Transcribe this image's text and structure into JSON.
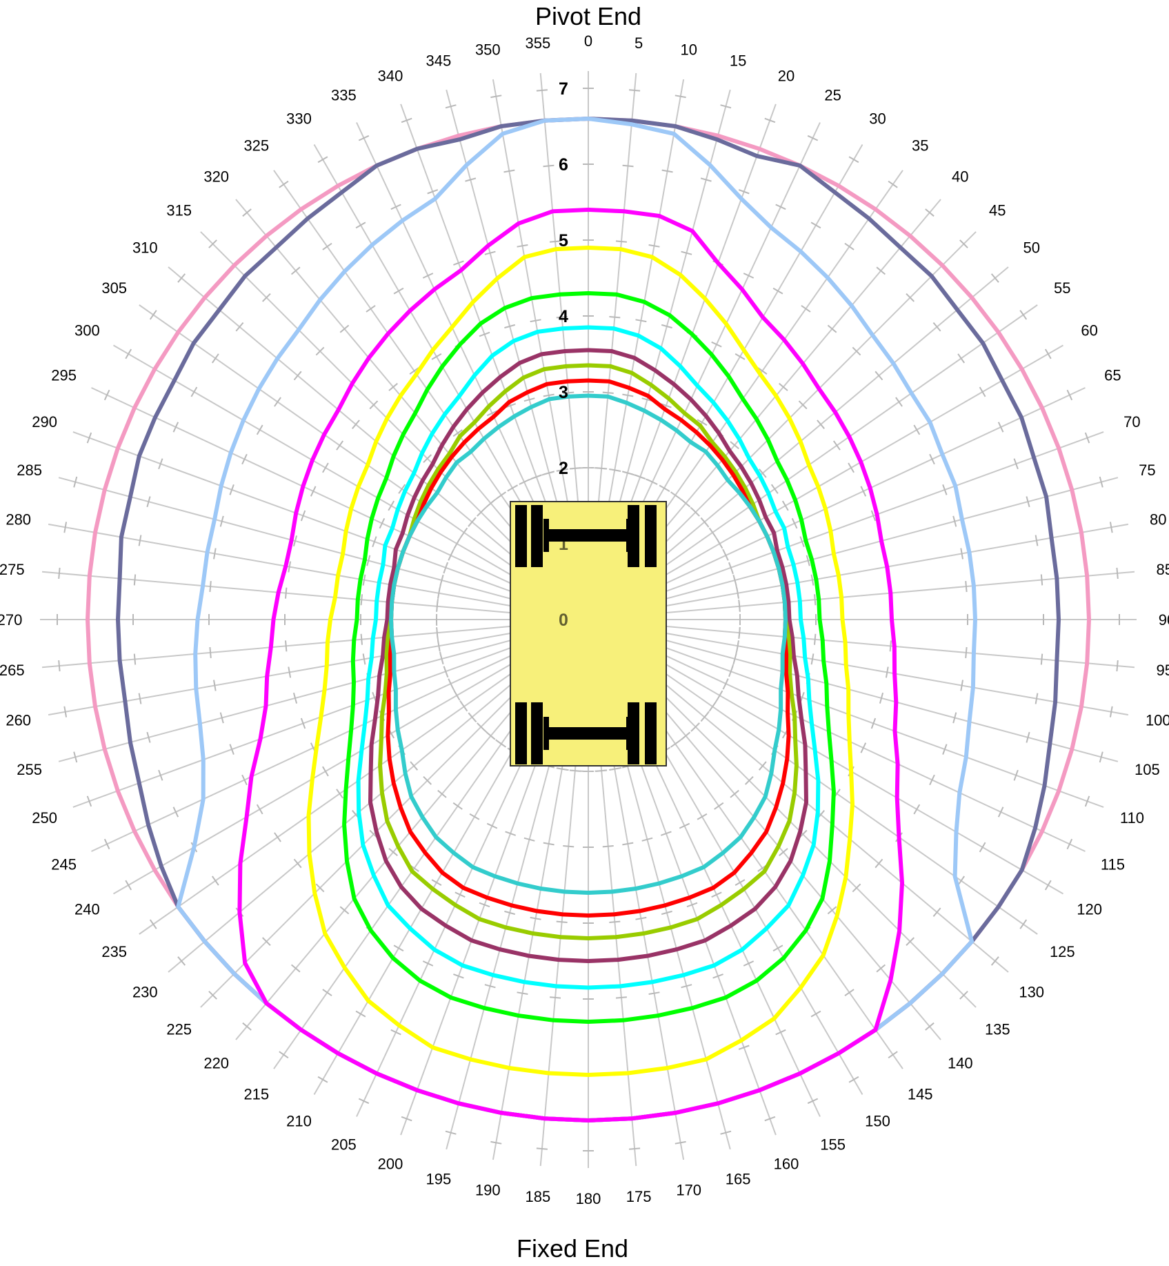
{
  "chart_data": {
    "type": "polar-line",
    "title": "Pivot End",
    "bottom_label": "Fixed End",
    "angle_ticks": [
      "0",
      "5",
      "10",
      "15",
      "20",
      "25",
      "30",
      "35",
      "40",
      "45",
      "50",
      "55",
      "60",
      "65",
      "70",
      "75",
      "80",
      "85",
      "90",
      "95",
      "100",
      "105",
      "110",
      "115",
      "120",
      "125",
      "130",
      "135",
      "140",
      "145",
      "150",
      "155",
      "160",
      "165",
      "170",
      "175",
      "180",
      "185",
      "190",
      "195",
      "200",
      "205",
      "210",
      "215",
      "220",
      "225",
      "230",
      "235",
      "240",
      "245",
      "250",
      "255",
      "260",
      "265",
      "270",
      "275",
      "280",
      "285",
      "290",
      "295",
      "300",
      "305",
      "310",
      "315",
      "320",
      "325",
      "330",
      "335",
      "340",
      "345",
      "350",
      "355"
    ],
    "radial_ticks": [
      "0",
      "1",
      "2",
      "3",
      "4",
      "5",
      "6",
      "7"
    ],
    "radial_range": [
      0,
      7.5
    ],
    "angle_step_deg": 5,
    "grid": true,
    "legend": "none",
    "series": [
      {
        "color": "#f49ac2",
        "values": [
          6.6,
          6.6,
          6.6,
          6.6,
          6.6,
          6.6,
          6.6,
          6.6,
          6.6,
          6.6,
          6.6,
          6.6,
          6.6,
          6.6,
          6.6,
          6.6,
          6.6,
          6.6,
          6.6,
          6.6,
          6.6,
          6.6,
          6.6,
          6.6,
          6.6,
          6.6,
          6.6,
          6.6,
          6.6,
          6.6,
          6.6,
          6.6,
          6.6,
          6.6,
          6.6,
          6.6,
          6.6,
          6.6,
          6.6,
          6.6,
          6.6,
          6.6,
          6.6,
          6.6,
          6.6,
          6.6,
          6.6,
          6.6,
          6.6,
          6.6,
          6.6,
          6.6,
          6.6,
          6.6,
          6.6,
          6.6,
          6.6,
          6.6,
          6.6,
          6.6,
          6.6,
          6.6,
          6.6,
          6.6,
          6.6,
          6.6,
          6.6,
          6.6,
          6.6,
          6.6,
          6.6,
          6.6
        ]
      },
      {
        "color": "#6a6b9c",
        "values": [
          6.6,
          6.6,
          6.6,
          6.55,
          6.5,
          6.6,
          6.5,
          6.45,
          6.4,
          6.4,
          6.35,
          6.35,
          6.3,
          6.3,
          6.25,
          6.25,
          6.2,
          6.2,
          6.2,
          6.2,
          6.25,
          6.3,
          6.4,
          6.5,
          6.6,
          6.6,
          6.6,
          6.6,
          6.6,
          6.6,
          6.6,
          6.6,
          6.6,
          6.6,
          6.6,
          6.6,
          6.6,
          6.6,
          6.6,
          6.6,
          6.6,
          6.6,
          6.6,
          6.6,
          6.6,
          6.6,
          6.6,
          6.6,
          6.5,
          6.4,
          6.3,
          6.25,
          6.2,
          6.2,
          6.2,
          6.2,
          6.25,
          6.25,
          6.3,
          6.3,
          6.3,
          6.35,
          6.35,
          6.4,
          6.4,
          6.45,
          6.5,
          6.6,
          6.6,
          6.55,
          6.6,
          6.6
        ]
      },
      {
        "color": "#9dc8f7",
        "values": [
          6.6,
          6.55,
          6.5,
          6.2,
          5.9,
          5.7,
          5.6,
          5.5,
          5.4,
          5.3,
          5.25,
          5.2,
          5.2,
          5.15,
          5.15,
          5.1,
          5.1,
          5.1,
          5.1,
          5.1,
          5.15,
          5.2,
          5.3,
          5.4,
          5.6,
          5.9,
          6.6,
          6.6,
          6.6,
          6.6,
          6.6,
          6.6,
          6.6,
          6.6,
          6.6,
          6.6,
          6.6,
          6.6,
          6.6,
          6.6,
          6.6,
          6.6,
          6.6,
          6.6,
          6.6,
          6.6,
          6.6,
          6.6,
          6.0,
          5.6,
          5.4,
          5.3,
          5.25,
          5.2,
          5.15,
          5.1,
          5.1,
          5.1,
          5.15,
          5.2,
          5.25,
          5.3,
          5.35,
          5.4,
          5.5,
          5.6,
          5.7,
          5.8,
          5.9,
          6.2,
          6.5,
          6.6
        ]
      },
      {
        "color": "#ff00ff",
        "values": [
          5.4,
          5.4,
          5.4,
          5.3,
          5.0,
          4.8,
          4.6,
          4.5,
          4.4,
          4.3,
          4.25,
          4.2,
          4.15,
          4.1,
          4.05,
          4.0,
          4.0,
          4.0,
          4.0,
          4.05,
          4.1,
          4.2,
          4.3,
          4.5,
          4.7,
          5.0,
          5.4,
          5.8,
          6.2,
          6.6,
          6.6,
          6.6,
          6.6,
          6.6,
          6.6,
          6.6,
          6.6,
          6.6,
          6.6,
          6.6,
          6.6,
          6.6,
          6.6,
          6.6,
          6.6,
          6.4,
          6.0,
          5.6,
          5.2,
          4.9,
          4.6,
          4.4,
          4.3,
          4.2,
          4.15,
          4.1,
          4.05,
          4.05,
          4.1,
          4.15,
          4.2,
          4.25,
          4.3,
          4.4,
          4.5,
          4.6,
          4.7,
          4.8,
          4.9,
          5.1,
          5.3,
          5.4
        ]
      },
      {
        "color": "#ffff00",
        "values": [
          4.9,
          4.9,
          4.85,
          4.7,
          4.5,
          4.3,
          4.1,
          3.95,
          3.85,
          3.75,
          3.65,
          3.55,
          3.5,
          3.45,
          3.4,
          3.35,
          3.35,
          3.35,
          3.35,
          3.4,
          3.45,
          3.55,
          3.65,
          3.8,
          4.0,
          4.25,
          4.5,
          4.8,
          5.1,
          5.4,
          5.6,
          5.8,
          5.9,
          6.0,
          6.0,
          6.0,
          6.0,
          6.0,
          6.0,
          6.0,
          6.0,
          5.9,
          5.8,
          5.6,
          5.4,
          5.1,
          4.8,
          4.5,
          4.2,
          3.95,
          3.75,
          3.6,
          3.5,
          3.45,
          3.4,
          3.35,
          3.35,
          3.35,
          3.4,
          3.45,
          3.5,
          3.55,
          3.65,
          3.75,
          3.85,
          3.95,
          4.1,
          4.25,
          4.45,
          4.65,
          4.85,
          4.9
        ]
      },
      {
        "color": "#00ff00",
        "values": [
          4.3,
          4.3,
          4.25,
          4.15,
          4.0,
          3.85,
          3.7,
          3.55,
          3.45,
          3.35,
          3.25,
          3.2,
          3.15,
          3.1,
          3.05,
          3.05,
          3.05,
          3.05,
          3.05,
          3.1,
          3.15,
          3.25,
          3.35,
          3.5,
          3.7,
          3.95,
          4.2,
          4.5,
          4.8,
          5.0,
          5.15,
          5.25,
          5.3,
          5.3,
          5.3,
          5.3,
          5.3,
          5.3,
          5.3,
          5.3,
          5.3,
          5.25,
          5.15,
          5.0,
          4.8,
          4.5,
          4.2,
          3.9,
          3.65,
          3.45,
          3.3,
          3.2,
          3.15,
          3.1,
          3.05,
          3.05,
          3.05,
          3.05,
          3.1,
          3.15,
          3.2,
          3.25,
          3.35,
          3.45,
          3.55,
          3.7,
          3.85,
          4.0,
          4.15,
          4.25,
          4.3,
          4.3
        ]
      },
      {
        "color": "#00ffff",
        "values": [
          3.85,
          3.85,
          3.8,
          3.7,
          3.55,
          3.4,
          3.3,
          3.2,
          3.1,
          3.0,
          2.95,
          2.9,
          2.85,
          2.85,
          2.8,
          2.8,
          2.8,
          2.8,
          2.8,
          2.85,
          2.9,
          3.0,
          3.1,
          3.25,
          3.45,
          3.7,
          3.95,
          4.2,
          4.4,
          4.6,
          4.7,
          4.8,
          4.85,
          4.85,
          4.85,
          4.85,
          4.85,
          4.85,
          4.85,
          4.85,
          4.85,
          4.8,
          4.7,
          4.6,
          4.4,
          4.2,
          3.95,
          3.7,
          3.45,
          3.25,
          3.1,
          3.0,
          2.9,
          2.85,
          2.8,
          2.8,
          2.8,
          2.8,
          2.85,
          2.85,
          2.9,
          2.95,
          3.0,
          3.1,
          3.2,
          3.3,
          3.4,
          3.55,
          3.7,
          3.8,
          3.85,
          3.85
        ]
      },
      {
        "color": "#993366",
        "values": [
          3.55,
          3.55,
          3.5,
          3.4,
          3.3,
          3.2,
          3.1,
          3.0,
          2.9,
          2.85,
          2.8,
          2.75,
          2.7,
          2.7,
          2.65,
          2.65,
          2.65,
          2.65,
          2.65,
          2.7,
          2.75,
          2.85,
          2.95,
          3.1,
          3.3,
          3.5,
          3.75,
          3.95,
          4.15,
          4.3,
          4.4,
          4.45,
          4.5,
          4.5,
          4.5,
          4.5,
          4.5,
          4.5,
          4.5,
          4.5,
          4.5,
          4.45,
          4.4,
          4.3,
          4.15,
          3.95,
          3.75,
          3.5,
          3.3,
          3.1,
          2.95,
          2.85,
          2.75,
          2.7,
          2.65,
          2.65,
          2.65,
          2.65,
          2.7,
          2.7,
          2.75,
          2.8,
          2.85,
          2.9,
          3.0,
          3.1,
          3.2,
          3.3,
          3.4,
          3.5,
          3.55,
          3.55
        ]
      },
      {
        "color": "#99cc00",
        "values": [
          3.35,
          3.35,
          3.3,
          3.2,
          3.1,
          3.0,
          2.95,
          2.85,
          2.8,
          2.75,
          2.7,
          2.65,
          2.6,
          2.6,
          2.6,
          2.6,
          2.6,
          2.6,
          2.6,
          2.65,
          2.7,
          2.75,
          2.85,
          3.0,
          3.15,
          3.35,
          3.55,
          3.75,
          3.9,
          4.05,
          4.1,
          4.15,
          4.2,
          4.2,
          4.2,
          4.2,
          4.2,
          4.2,
          4.2,
          4.2,
          4.2,
          4.15,
          4.1,
          4.05,
          3.9,
          3.75,
          3.55,
          3.35,
          3.15,
          3.0,
          2.85,
          2.75,
          2.7,
          2.65,
          2.6,
          2.6,
          2.6,
          2.6,
          2.6,
          2.6,
          2.65,
          2.7,
          2.75,
          2.8,
          2.85,
          2.95,
          3.0,
          3.1,
          3.2,
          3.3,
          3.35,
          3.35
        ]
      },
      {
        "color": "#ff0000",
        "values": [
          3.15,
          3.15,
          3.1,
          3.05,
          2.95,
          2.9,
          2.85,
          2.8,
          2.75,
          2.7,
          2.65,
          2.6,
          2.6,
          2.6,
          2.6,
          2.6,
          2.6,
          2.6,
          2.6,
          2.6,
          2.65,
          2.7,
          2.8,
          2.9,
          3.05,
          3.2,
          3.35,
          3.5,
          3.65,
          3.75,
          3.85,
          3.9,
          3.9,
          3.9,
          3.9,
          3.9,
          3.9,
          3.9,
          3.9,
          3.9,
          3.9,
          3.9,
          3.85,
          3.75,
          3.65,
          3.5,
          3.35,
          3.2,
          3.05,
          2.9,
          2.8,
          2.7,
          2.65,
          2.6,
          2.6,
          2.6,
          2.6,
          2.6,
          2.6,
          2.6,
          2.6,
          2.65,
          2.7,
          2.75,
          2.8,
          2.85,
          2.9,
          2.95,
          3.05,
          3.1,
          3.15,
          3.15
        ]
      },
      {
        "color": "#33cccc",
        "values": [
          2.95,
          2.95,
          2.9,
          2.85,
          2.8,
          2.75,
          2.7,
          2.7,
          2.65,
          2.6,
          2.6,
          2.6,
          2.6,
          2.6,
          2.6,
          2.6,
          2.6,
          2.6,
          2.6,
          2.6,
          2.6,
          2.65,
          2.7,
          2.8,
          2.9,
          3.0,
          3.15,
          3.3,
          3.4,
          3.5,
          3.55,
          3.6,
          3.6,
          3.6,
          3.6,
          3.6,
          3.6,
          3.6,
          3.6,
          3.6,
          3.6,
          3.6,
          3.55,
          3.5,
          3.4,
          3.3,
          3.15,
          3.0,
          2.9,
          2.8,
          2.7,
          2.65,
          2.6,
          2.6,
          2.6,
          2.6,
          2.6,
          2.6,
          2.6,
          2.6,
          2.6,
          2.6,
          2.6,
          2.65,
          2.7,
          2.7,
          2.75,
          2.8,
          2.85,
          2.9,
          2.95,
          2.95
        ]
      }
    ]
  },
  "vehicle_icon": {
    "body_color": "#f7f07a",
    "outline_color": "#333333",
    "axle_color": "#000000"
  }
}
